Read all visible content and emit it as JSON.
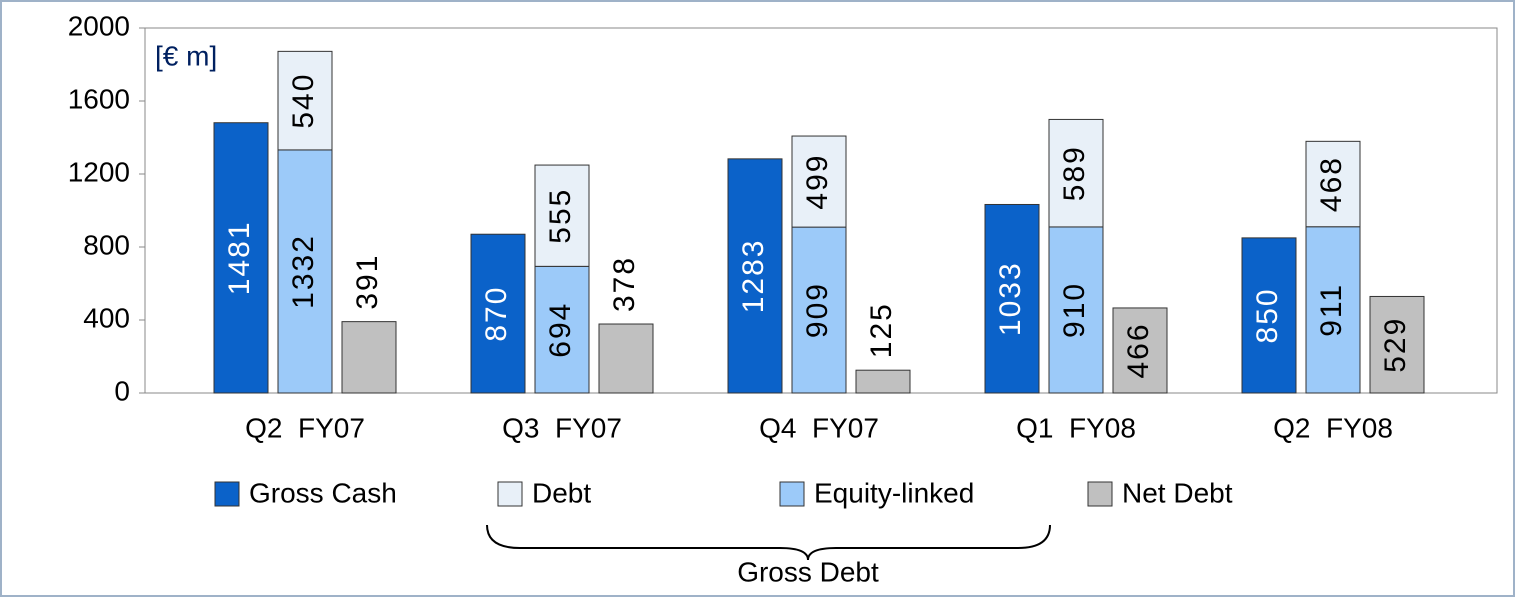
{
  "chart_data": {
    "type": "bar",
    "unit_label": "[€ m]",
    "categories": [
      "Q2  FY07",
      "Q3  FY07",
      "Q4  FY07",
      "Q1  FY08",
      "Q2  FY08"
    ],
    "series": [
      {
        "name": "Gross Cash",
        "color": "#0b62c9",
        "values": [
          1481,
          870,
          1283,
          1033,
          850
        ]
      },
      {
        "name": "Debt",
        "color": "#e8f0f8",
        "values": [
          540,
          555,
          499,
          589,
          468
        ]
      },
      {
        "name": "Equity-linked",
        "color": "#9ccaf9",
        "values": [
          1332,
          694,
          909,
          910,
          911
        ]
      },
      {
        "name": "Net Debt",
        "color": "#c0c0c0",
        "values": [
          391,
          378,
          125,
          466,
          529
        ]
      }
    ],
    "annotation": "Gross Debt",
    "ylim": [
      0,
      2000
    ],
    "yticks": [
      0,
      400,
      800,
      1200,
      1600,
      2000
    ]
  }
}
